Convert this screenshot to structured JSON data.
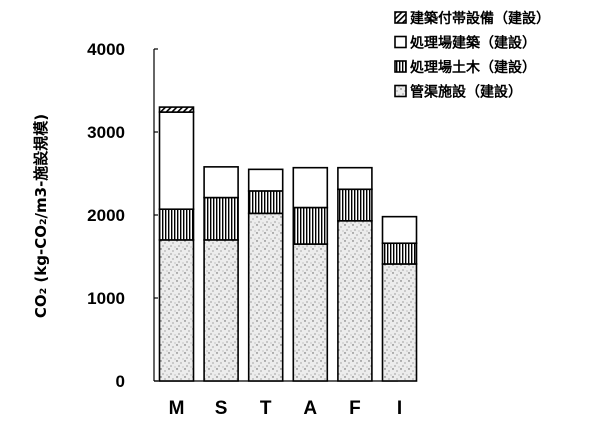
{
  "chart_data": {
    "type": "bar",
    "stacked": true,
    "categories": [
      "M",
      "S",
      "T",
      "A",
      "F",
      "I"
    ],
    "series": [
      {
        "name": "管渠施設（建設）",
        "values": [
          1700,
          1700,
          2020,
          1650,
          1930,
          1410
        ],
        "pattern": "stipple"
      },
      {
        "name": "処理場土木（建設）",
        "values": [
          370,
          510,
          270,
          440,
          380,
          250
        ],
        "pattern": "vertical-lines"
      },
      {
        "name": "処理場建築（建設）",
        "values": [
          1170,
          370,
          260,
          480,
          260,
          320
        ],
        "pattern": "white"
      },
      {
        "name": "建築付帯設備（建設）",
        "values": [
          60,
          0,
          0,
          0,
          0,
          0
        ],
        "pattern": "diagonal-hatch"
      }
    ],
    "legend_order": [
      "建築付帯設備（建設）",
      "処理場建築（建設）",
      "処理場土木（建設）",
      "管渠施設（建設）"
    ],
    "ylabel": "CO₂ (kg-CO₂/m3-施設規模)",
    "xlabel": "",
    "title": "",
    "ylim": [
      0,
      4000
    ],
    "yticks": [
      0,
      1000,
      2000,
      3000,
      4000
    ],
    "grid": false,
    "legend_position": "top-right"
  }
}
